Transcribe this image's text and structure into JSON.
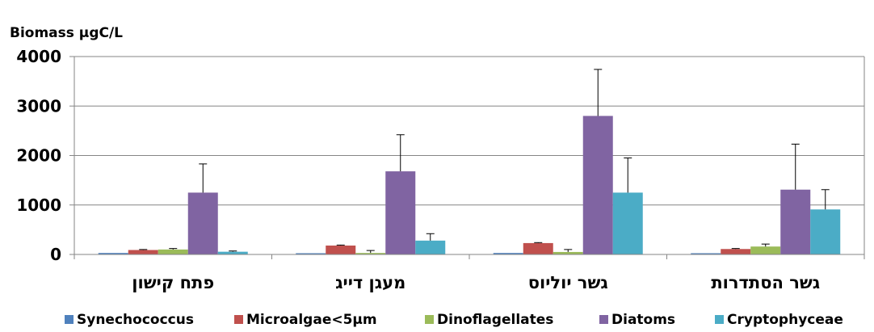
{
  "chart_data": {
    "type": "bar",
    "ylabel": "Biomass μgC/L",
    "ylim": [
      0,
      4000
    ],
    "yticks": [
      "0",
      "1000",
      "2000",
      "3000",
      "4000"
    ],
    "categories": [
      "פתח קישון",
      "מעגן דייג",
      "גשר יוליוס",
      "גשר הסתדרות"
    ],
    "grid": true,
    "legend_position": "bottom",
    "series": [
      {
        "name": "Synechococcus",
        "color": "#4F81BD",
        "values": [
          30,
          25,
          30,
          25
        ],
        "errors": [
          0,
          0,
          0,
          0
        ]
      },
      {
        "name": "Microalgae<5µm",
        "color": "#C0504D",
        "values": [
          90,
          180,
          230,
          110
        ],
        "errors": [
          10,
          10,
          10,
          10
        ]
      },
      {
        "name": "Dinoflagellates",
        "color": "#9BBB59",
        "values": [
          100,
          30,
          50,
          160
        ],
        "errors": [
          20,
          50,
          50,
          50
        ]
      },
      {
        "name": "Diatoms",
        "color": "#8064A2",
        "values": [
          1250,
          1680,
          2800,
          1310
        ],
        "errors": [
          580,
          740,
          940,
          920
        ]
      },
      {
        "name": "Cryptophyceae",
        "color": "#4BACC6",
        "values": [
          55,
          280,
          1250,
          910
        ],
        "errors": [
          15,
          140,
          700,
          400
        ]
      }
    ]
  }
}
